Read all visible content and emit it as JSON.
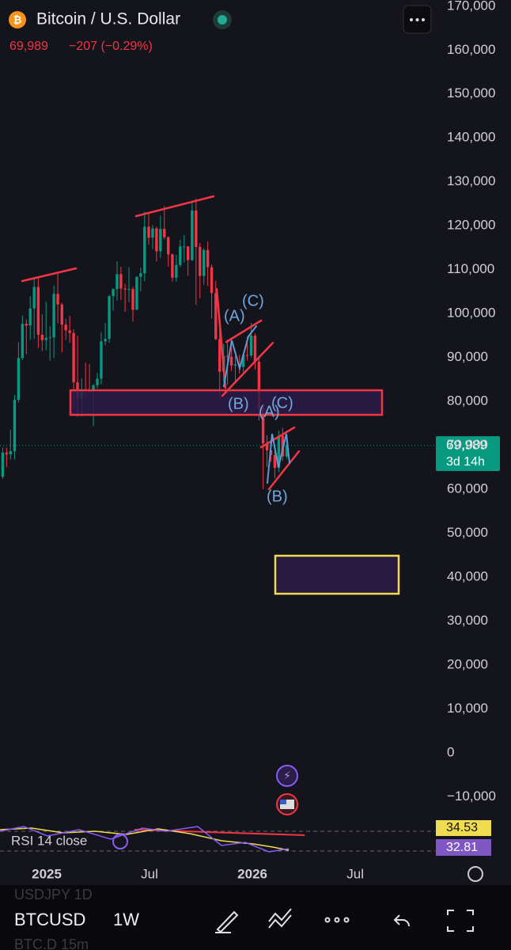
{
  "chart_data": {
    "type": "candlestick",
    "header": {
      "title": "Bitcoin / U.S. Dollar",
      "price": "69,989",
      "change": "−207 (−0.29%)"
    },
    "price_tag": {
      "price": "69,989",
      "countdown": "3d 14h"
    },
    "annotations": [
      "(A)",
      "(C)",
      "(B)",
      "(A)",
      "(C)",
      "(B)"
    ],
    "rsi": {
      "label": "RSI 14 close",
      "value_labels": [
        "34.53",
        "32.81"
      ]
    },
    "toolbar": {
      "symbol": "BTCUSD",
      "interval": "1W",
      "watch_above": "USDJPY 1D",
      "watch_below": "BTC.D 15m"
    },
    "up_color": "#089981",
    "down_color": "#f23645",
    "xlim": [
      2024.773,
      2026.888
    ],
    "xticks": [
      {
        "value": 2025,
        "label": "2025"
      },
      {
        "value": 2025.5,
        "label": "Jul"
      },
      {
        "value": 2026,
        "label": "2026"
      },
      {
        "value": 2026.5,
        "label": "Jul"
      }
    ],
    "ylim": [
      -16000,
      171400
    ],
    "yticks": [
      {
        "value": 170000,
        "label": "170,000"
      },
      {
        "value": 160000,
        "label": "160,000"
      },
      {
        "value": 150000,
        "label": "150,000"
      },
      {
        "value": 140000,
        "label": "140,000"
      },
      {
        "value": 130000,
        "label": "130,000"
      },
      {
        "value": 120000,
        "label": "120,000"
      },
      {
        "value": 110000,
        "label": "110,000"
      },
      {
        "value": 100000,
        "label": "100,000"
      },
      {
        "value": 90000,
        "label": "90,000"
      },
      {
        "value": 80000,
        "label": "80,000"
      },
      {
        "value": 70000,
        "label": "70,000"
      },
      {
        "value": 60000,
        "label": "60,000"
      },
      {
        "value": 50000,
        "label": "50,000"
      },
      {
        "value": 40000,
        "label": "40,000"
      },
      {
        "value": 30000,
        "label": "30,000"
      },
      {
        "value": 20000,
        "label": "20,000"
      },
      {
        "value": 10000,
        "label": "10,000"
      },
      0,
      {
        "value": -10000,
        "label": "−10,000"
      }
    ],
    "grid": false,
    "x": [
      2024.786,
      2024.805,
      2024.824,
      2024.844,
      2024.863,
      2024.882,
      2024.901,
      2024.92,
      2024.939,
      2024.959,
      2024.978,
      2024.997,
      2025.016,
      2025.035,
      2025.054,
      2025.074,
      2025.093,
      2025.112,
      2025.131,
      2025.15,
      2025.17,
      2025.189,
      2025.208,
      2025.227,
      2025.246,
      2025.265,
      2025.285,
      2025.304,
      2025.323,
      2025.342,
      2025.361,
      2025.381,
      2025.4,
      2025.419,
      2025.438,
      2025.457,
      2025.476,
      2025.496,
      2025.515,
      2025.534,
      2025.553,
      2025.572,
      2025.591,
      2025.611,
      2025.63,
      2025.649,
      2025.668,
      2025.687,
      2025.707,
      2025.726,
      2025.745,
      2025.764,
      2025.783,
      2025.802,
      2025.822,
      2025.841,
      2025.86,
      2025.879,
      2025.898,
      2025.917,
      2025.937,
      2025.956,
      2025.975,
      2025.994,
      2026.013,
      2026.032,
      2026.052,
      2026.071,
      2026.09,
      2026.109,
      2026.128,
      2026.147,
      2026.167
    ],
    "open": [
      62900,
      68400,
      68000,
      68700,
      80400,
      89900,
      97700,
      97300,
      101200,
      106100,
      95200,
      94000,
      94500,
      94600,
      104500,
      102100,
      97500,
      96200,
      95600,
      84400,
      80700,
      82600,
      82400,
      82300,
      83700,
      85200,
      93700,
      94300,
      104000,
      105600,
      109000,
      105700,
      105500,
      105600,
      100900,
      108400,
      109200,
      119800,
      117300,
      119400,
      114200,
      119300,
      117400,
      113500,
      108200,
      111100,
      115300,
      115300,
      112200,
      123500,
      115200,
      108600,
      114500,
      110600,
      104700,
      94200,
      86800,
      90400,
      90200,
      88200,
      88500,
      87900,
      90600,
      90500,
      95000,
      89100,
      78600,
      70500,
      68900,
      67800,
      64900,
      72200,
      67500
    ],
    "high": [
      69500,
      69500,
      73600,
      81500,
      93500,
      99600,
      98700,
      104000,
      108300,
      108300,
      99900,
      102700,
      97200,
      106400,
      109400,
      102500,
      98800,
      99500,
      96500,
      95000,
      85300,
      88800,
      88500,
      84000,
      86500,
      95800,
      97900,
      104300,
      105800,
      111900,
      110700,
      106800,
      110600,
      106100,
      108500,
      110500,
      123200,
      123000,
      120200,
      119800,
      122300,
      124500,
      117600,
      113700,
      113400,
      116800,
      117900,
      115400,
      125700,
      126200,
      116100,
      114900,
      116400,
      111200,
      107500,
      96600,
      93100,
      94100,
      94600,
      90400,
      90600,
      90900,
      94800,
      97900,
      95500,
      90000,
      79400,
      72300,
      71000,
      69400,
      73400,
      74000,
      71500
    ],
    "low": [
      62400,
      65100,
      66800,
      66800,
      79800,
      89400,
      90800,
      94000,
      94200,
      92200,
      91500,
      91700,
      89300,
      89900,
      97800,
      91200,
      94100,
      93400,
      78200,
      76600,
      76600,
      81200,
      81600,
      74400,
      83000,
      83900,
      92800,
      93400,
      100700,
      103000,
      103100,
      100400,
      102600,
      98200,
      100800,
      105100,
      107400,
      115700,
      114700,
      111900,
      112700,
      116900,
      110700,
      107300,
      107300,
      110600,
      111700,
      108600,
      112000,
      102000,
      103500,
      106600,
      106300,
      98900,
      94000,
      80600,
      84400,
      83800,
      86900,
      84400,
      86400,
      86700,
      89300,
      90000,
      87300,
      75700,
      60100,
      65100,
      66300,
      62500,
      63900,
      66500,
      67000
    ],
    "close": [
      68400,
      68000,
      68700,
      80400,
      89900,
      97700,
      97300,
      101200,
      106100,
      95200,
      94000,
      94500,
      94600,
      104500,
      102100,
      97500,
      96200,
      95600,
      84400,
      80700,
      82600,
      82400,
      82300,
      83700,
      85200,
      93700,
      94300,
      104000,
      105600,
      109000,
      105700,
      105500,
      105600,
      100900,
      108400,
      109200,
      119800,
      117300,
      119400,
      114200,
      119300,
      117400,
      113500,
      108200,
      111100,
      115300,
      115300,
      112200,
      123500,
      115200,
      108600,
      114500,
      110600,
      104700,
      94200,
      86800,
      90400,
      90200,
      88200,
      88500,
      87900,
      90600,
      90500,
      95000,
      89100,
      78600,
      70500,
      68900,
      67800,
      64900,
      72200,
      67500,
      69989
    ]
  }
}
